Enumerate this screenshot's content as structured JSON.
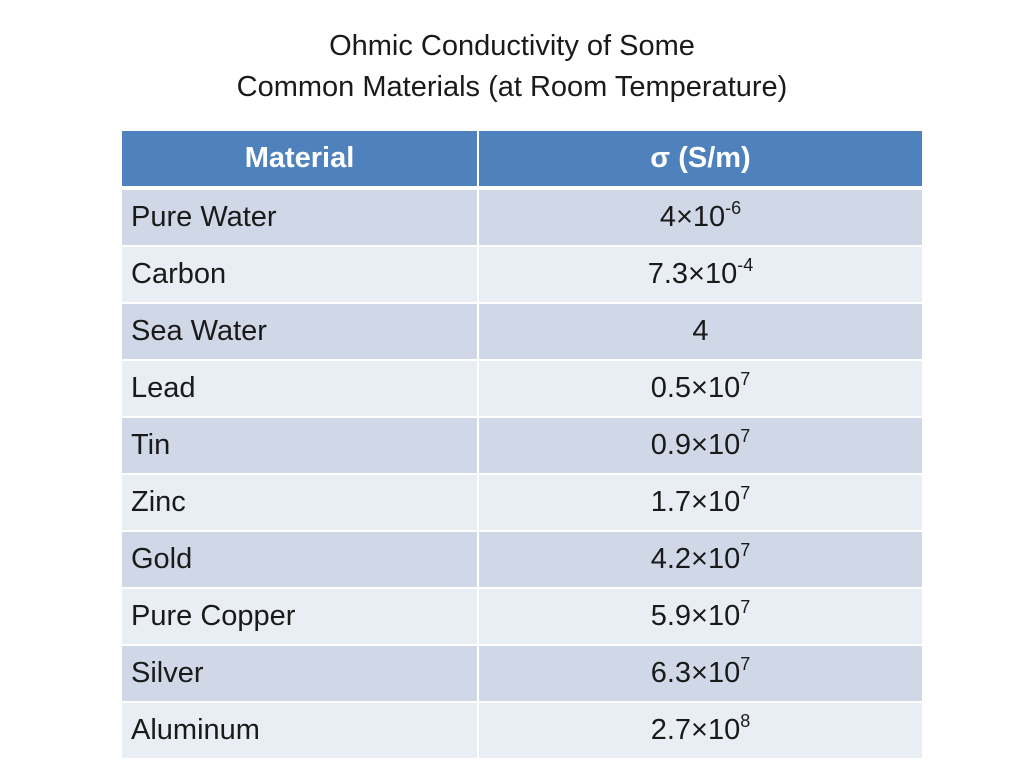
{
  "title": {
    "line1": "Ohmic Conductivity of Some",
    "line2": "Common Materials (at Room Temperature)"
  },
  "table": {
    "headers": {
      "material": "Material",
      "sigma": "σ (S/m)"
    },
    "rows": [
      {
        "material": "Pure Water",
        "mantissa": "4×10",
        "exponent": "-6"
      },
      {
        "material": "Carbon",
        "mantissa": "7.3×10",
        "exponent": "-4"
      },
      {
        "material": "Sea Water",
        "mantissa": "4",
        "exponent": ""
      },
      {
        "material": "Lead",
        "mantissa": "0.5×10",
        "exponent": "7"
      },
      {
        "material": "Tin",
        "mantissa": "0.9×10",
        "exponent": "7"
      },
      {
        "material": "Zinc",
        "mantissa": "1.7×10",
        "exponent": "7"
      },
      {
        "material": "Gold",
        "mantissa": "4.2×10",
        "exponent": "7"
      },
      {
        "material": "Pure Copper",
        "mantissa": "5.9×10",
        "exponent": "7"
      },
      {
        "material": "Silver",
        "mantissa": "6.3×10",
        "exponent": "7"
      },
      {
        "material": "Aluminum",
        "mantissa": "2.7×10",
        "exponent": "8"
      }
    ]
  },
  "colors": {
    "header_bg": "#4f81bd",
    "row_odd_bg": "#d0d8e8",
    "row_even_bg": "#e9edf4"
  }
}
